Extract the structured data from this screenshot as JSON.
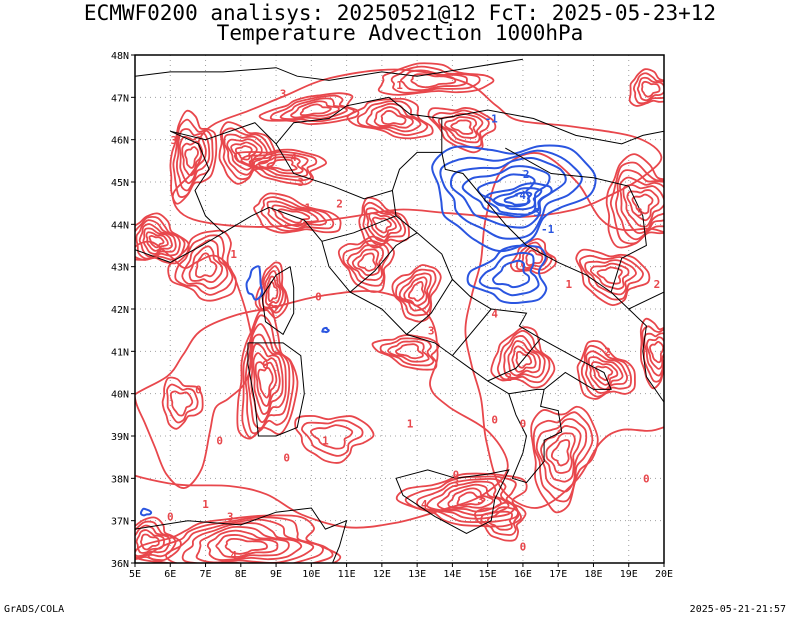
{
  "header": {
    "title_line1": "ECMWF0200 analisys: 20250521@12 FcT: 2025-05-23+12",
    "title_line2": "Temperature Advection 1000hPa"
  },
  "map": {
    "lon_ticks": [
      "5E",
      "6E",
      "7E",
      "8E",
      "9E",
      "10E",
      "11E",
      "12E",
      "13E",
      "14E",
      "15E",
      "16E",
      "17E",
      "18E",
      "19E",
      "20E"
    ],
    "lat_ticks": [
      "48N",
      "47N",
      "46N",
      "45N",
      "44N",
      "43N",
      "42N",
      "41N",
      "40N",
      "39N",
      "38N",
      "37N",
      "36N"
    ],
    "lon_range": [
      5,
      20
    ],
    "lat_range": [
      36,
      48
    ],
    "grid": "dotted",
    "colors": {
      "warm_advection": "#e8474c",
      "cold_advection": "#2a55e0",
      "coastline": "#000000",
      "grid": "#a0a0a0"
    },
    "contour_labels": {
      "warm": [
        {
          "text": "3",
          "lon": 9.2,
          "lat": 47.0
        },
        {
          "text": "1",
          "lon": 12.5,
          "lat": 47.2
        },
        {
          "text": "3",
          "lon": 6.1,
          "lat": 45.9
        },
        {
          "text": "4",
          "lon": 9.5,
          "lat": 45.5
        },
        {
          "text": "3",
          "lon": 9.7,
          "lat": 44.9
        },
        {
          "text": "2",
          "lon": 10.8,
          "lat": 44.4
        },
        {
          "text": "1",
          "lon": 9.9,
          "lat": 44.3
        },
        {
          "text": "3",
          "lon": 5.6,
          "lat": 43.2
        },
        {
          "text": "1",
          "lon": 7.8,
          "lat": 43.2
        },
        {
          "text": "0",
          "lon": 10.2,
          "lat": 42.2
        },
        {
          "text": "2",
          "lon": 9.0,
          "lat": 41.9
        },
        {
          "text": "3",
          "lon": 13.4,
          "lat": 41.4
        },
        {
          "text": "4",
          "lon": 15.2,
          "lat": 41.8
        },
        {
          "text": "0",
          "lon": 8.7,
          "lat": 40.6
        },
        {
          "text": "0",
          "lon": 6.8,
          "lat": 40.0
        },
        {
          "text": "0",
          "lon": 15.2,
          "lat": 39.3
        },
        {
          "text": "1",
          "lon": 10.4,
          "lat": 38.8
        },
        {
          "text": "0",
          "lon": 9.3,
          "lat": 38.4
        },
        {
          "text": "0",
          "lon": 7.4,
          "lat": 38.8
        },
        {
          "text": "2",
          "lon": 15.6,
          "lat": 40.3
        },
        {
          "text": "3",
          "lon": 19.3,
          "lat": 44.2
        },
        {
          "text": "2",
          "lon": 19.8,
          "lat": 42.5
        },
        {
          "text": "1",
          "lon": 17.3,
          "lat": 42.5
        },
        {
          "text": "0",
          "lon": 16.0,
          "lat": 39.2
        },
        {
          "text": "0",
          "lon": 14.1,
          "lat": 38.0
        },
        {
          "text": "3",
          "lon": 14.1,
          "lat": 37.8
        },
        {
          "text": "4",
          "lon": 13.2,
          "lat": 37.3
        },
        {
          "text": "3",
          "lon": 14.8,
          "lat": 37.4
        },
        {
          "text": "3",
          "lon": 7.7,
          "lat": 37.0
        },
        {
          "text": "1",
          "lon": 7.0,
          "lat": 37.3
        },
        {
          "text": "4",
          "lon": 7.8,
          "lat": 36.1
        },
        {
          "text": "0",
          "lon": 16.0,
          "lat": 36.3
        },
        {
          "text": "2",
          "lon": 18.4,
          "lat": 40.9
        },
        {
          "text": "0",
          "lon": 19.5,
          "lat": 37.9
        },
        {
          "text": "1",
          "lon": 12.8,
          "lat": 39.2
        },
        {
          "text": "0",
          "lon": 6.0,
          "lat": 37.0
        }
      ],
      "cold": [
        {
          "text": "-1",
          "lon": 15.1,
          "lat": 46.4
        },
        {
          "text": "-2",
          "lon": 16.0,
          "lat": 45.1
        },
        {
          "text": "-4",
          "lon": 15.9,
          "lat": 44.6
        },
        {
          "text": "-3",
          "lon": 16.3,
          "lat": 44.2
        },
        {
          "text": "-1",
          "lon": 16.7,
          "lat": 43.8
        }
      ]
    }
  },
  "footer": {
    "left": "GrADS/COLA",
    "right": "2025-05-21-21:57"
  }
}
